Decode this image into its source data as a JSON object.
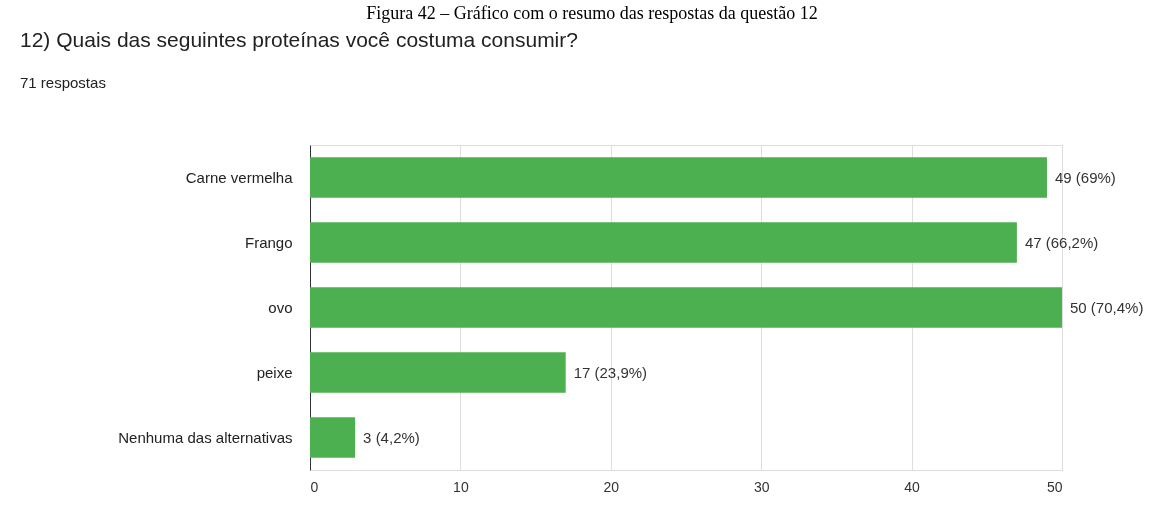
{
  "chart_data": {
    "type": "bar",
    "orientation": "horizontal",
    "title": "12) Quais das seguintes proteínas você costuma consumir?",
    "subtitle": "71 respostas",
    "annotations": [
      "Figura 42 – Gráfico com o resumo das respostas da questão 12"
    ],
    "categories": [
      "Carne vermelha",
      "Frango",
      "ovo",
      "peixe",
      "Nenhuma das alternativas"
    ],
    "values": [
      49,
      47,
      50,
      17,
      3
    ],
    "value_labels": [
      "49 (69%)",
      "47 (66,2%)",
      "50 (70,4%)",
      "17 (23,9%)",
      "3 (4,2%)"
    ],
    "color": "#4caf50",
    "xlim": [
      0,
      50
    ],
    "xticks": [
      0,
      10,
      20,
      30,
      40,
      50
    ],
    "grid": "x"
  }
}
